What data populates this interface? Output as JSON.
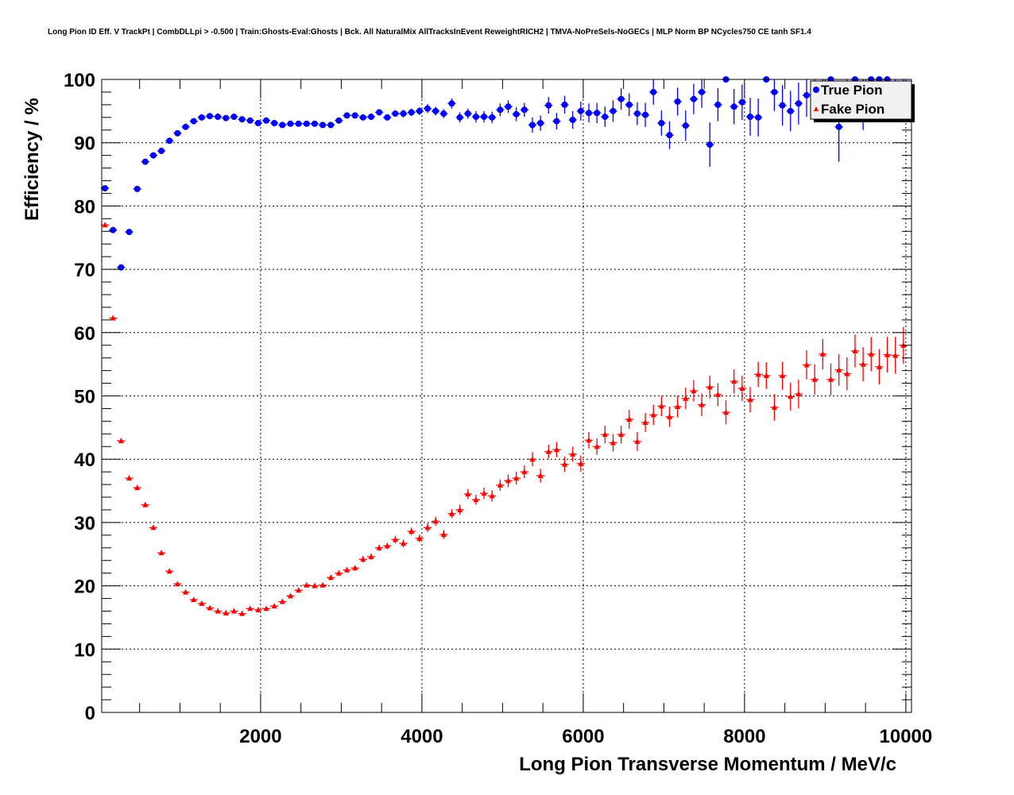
{
  "chart_data": {
    "type": "scatter",
    "title": "Long Pion ID Eff. V TrackPt | CombDLLpi > -0.500 | Train:Ghosts-Eval:Ghosts | Bck. All NaturalMix AllTracksInEvent ReweightRICH2 | TMVA-NoPreSels-NoGECs | MLP Norm BP NCycles750 CE tanh SF1.4",
    "xlabel": "Long Pion Transverse Momentum / MeV/c",
    "ylabel": "Efficiency / %",
    "xlim": [
      30,
      10070
    ],
    "ylim": [
      0,
      100
    ],
    "xticks": [
      "2000",
      "4000",
      "6000",
      "8000",
      "10000"
    ],
    "yticks": [
      "0",
      "10",
      "20",
      "30",
      "40",
      "50",
      "60",
      "70",
      "80",
      "90",
      "100"
    ],
    "grid": true,
    "legend_position": "top-right",
    "bin_start": 70,
    "bin_width": 100,
    "series": [
      {
        "name": "True Pion",
        "color": "#0000ff",
        "marker": "circle",
        "values": [
          82.8,
          76.2,
          70.3,
          75.9,
          82.7,
          87.0,
          88.0,
          88.7,
          90.3,
          91.5,
          92.5,
          93.4,
          94.0,
          94.2,
          94.1,
          93.9,
          94.1,
          93.7,
          93.5,
          93.1,
          93.5,
          93.1,
          92.8,
          93.0,
          93.0,
          93.0,
          93.0,
          92.8,
          92.8,
          93.5,
          94.3,
          94.3,
          94.0,
          94.1,
          94.8,
          94.0,
          94.6,
          94.6,
          94.8,
          95.0,
          95.4,
          95.0,
          94.6,
          96.2,
          94.0,
          94.6,
          94.1,
          94.1,
          94.0,
          95.2,
          95.7,
          94.5,
          95.2,
          92.8,
          93.1,
          95.9,
          93.4,
          96.0,
          93.6,
          95.0,
          94.7,
          94.7,
          94.1,
          95.0,
          96.9,
          96.0,
          94.6,
          94.4,
          98.0,
          93.1,
          91.2,
          96.5,
          92.7,
          96.9,
          98.0,
          89.7,
          96.0,
          100,
          95.7,
          96.4,
          94.1,
          94.0,
          100,
          98.0,
          95.9,
          95.0,
          96.2,
          97.5,
          98.5,
          97.0,
          100,
          92.5,
          97.5,
          100,
          96.0,
          100,
          100,
          100,
          98.0,
          98.0
        ],
        "errors": [
          0.3,
          0.3,
          0.3,
          0.3,
          0.3,
          0.3,
          0.3,
          0.3,
          0.3,
          0.3,
          0.3,
          0.3,
          0.3,
          0.3,
          0.3,
          0.3,
          0.3,
          0.3,
          0.3,
          0.3,
          0.3,
          0.3,
          0.3,
          0.3,
          0.3,
          0.3,
          0.3,
          0.3,
          0.3,
          0.4,
          0.4,
          0.4,
          0.4,
          0.5,
          0.5,
          0.5,
          0.5,
          0.6,
          0.6,
          0.6,
          0.7,
          0.7,
          0.7,
          0.8,
          0.8,
          0.8,
          0.9,
          0.9,
          0.9,
          1.0,
          1.0,
          1.1,
          1.1,
          1.2,
          1.2,
          1.3,
          1.3,
          1.4,
          1.4,
          1.5,
          1.5,
          1.6,
          1.6,
          1.7,
          1.7,
          1.8,
          1.8,
          1.9,
          2.0,
          2.0,
          2.2,
          2.2,
          2.4,
          2.4,
          2.5,
          3.5,
          2.6,
          0,
          2.8,
          2.8,
          3.0,
          3.0,
          0,
          3.0,
          3.2,
          3.2,
          3.3,
          3.4,
          3.4,
          3.5,
          0,
          5.5,
          3.5,
          0,
          4.0,
          0,
          0,
          0,
          3.5,
          3.5
        ]
      },
      {
        "name": "Fake Pion",
        "color": "#ff0000",
        "marker": "triangle",
        "values": [
          77.0,
          62.3,
          42.9,
          37.0,
          35.5,
          32.8,
          29.2,
          25.2,
          22.3,
          20.3,
          19.0,
          17.8,
          17.2,
          16.5,
          16.0,
          15.7,
          16.0,
          15.6,
          16.4,
          16.2,
          16.4,
          16.8,
          17.5,
          18.4,
          19.3,
          20.1,
          20.0,
          20.1,
          21.3,
          22.0,
          22.5,
          22.8,
          24.2,
          24.6,
          26.0,
          26.3,
          27.3,
          26.7,
          28.6,
          27.5,
          29.2,
          30.2,
          28.1,
          31.4,
          32.0,
          34.5,
          33.6,
          34.6,
          34.2,
          35.9,
          36.6,
          37.0,
          38.0,
          40.0,
          37.4,
          41.2,
          41.5,
          39.2,
          40.8,
          39.3,
          43.0,
          42.0,
          43.9,
          42.6,
          43.9,
          46.3,
          42.8,
          45.8,
          47.0,
          48.4,
          46.7,
          48.3,
          49.6,
          50.8,
          48.6,
          51.4,
          50.2,
          47.4,
          52.3,
          51.2,
          49.4,
          53.4,
          53.2,
          48.2,
          53.2,
          49.9,
          50.3,
          54.9,
          52.6,
          56.6,
          52.6,
          54.1,
          53.5,
          57.1,
          55.0,
          56.6,
          54.6,
          56.5,
          56.4,
          58.0
        ],
        "errors": [
          0.2,
          0.2,
          0.2,
          0.2,
          0.2,
          0.2,
          0.2,
          0.2,
          0.2,
          0.2,
          0.2,
          0.2,
          0.2,
          0.2,
          0.2,
          0.2,
          0.2,
          0.2,
          0.2,
          0.2,
          0.2,
          0.3,
          0.3,
          0.3,
          0.3,
          0.3,
          0.3,
          0.3,
          0.4,
          0.4,
          0.4,
          0.4,
          0.5,
          0.5,
          0.5,
          0.5,
          0.6,
          0.6,
          0.6,
          0.6,
          0.7,
          0.7,
          0.7,
          0.7,
          0.8,
          0.8,
          0.8,
          0.9,
          0.9,
          0.9,
          1.0,
          1.0,
          1.0,
          1.1,
          1.1,
          1.1,
          1.2,
          1.2,
          1.2,
          1.3,
          1.3,
          1.3,
          1.4,
          1.4,
          1.4,
          1.5,
          1.5,
          1.5,
          1.6,
          1.6,
          1.6,
          1.7,
          1.7,
          1.7,
          1.8,
          1.8,
          1.8,
          1.9,
          1.9,
          2.0,
          2.0,
          2.0,
          2.1,
          2.1,
          2.2,
          2.2,
          2.3,
          2.3,
          2.4,
          2.4,
          2.5,
          2.5,
          2.6,
          2.6,
          2.7,
          2.7,
          2.8,
          2.8,
          2.9,
          2.9
        ]
      }
    ]
  }
}
